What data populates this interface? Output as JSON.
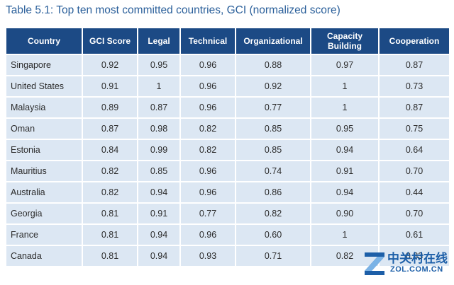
{
  "caption": "Table 5.1: Top ten most committed countries, GCI (normalized score)",
  "table": {
    "headers": [
      "Country",
      "GCI Score",
      "Legal",
      "Technical",
      "Organizational",
      "Capacity Building",
      "Cooperation"
    ],
    "rows": [
      [
        "Singapore",
        "0.92",
        "0.95",
        "0.96",
        "0.88",
        "0.97",
        "0.87"
      ],
      [
        "United States",
        "0.91",
        "1",
        "0.96",
        "0.92",
        "1",
        "0.73"
      ],
      [
        "Malaysia",
        "0.89",
        "0.87",
        "0.96",
        "0.77",
        "1",
        "0.87"
      ],
      [
        "Oman",
        "0.87",
        "0.98",
        "0.82",
        "0.85",
        "0.95",
        "0.75"
      ],
      [
        "Estonia",
        "0.84",
        "0.99",
        "0.82",
        "0.85",
        "0.94",
        "0.64"
      ],
      [
        "Mauritius",
        "0.82",
        "0.85",
        "0.96",
        "0.74",
        "0.91",
        "0.70"
      ],
      [
        "Australia",
        "0.82",
        "0.94",
        "0.96",
        "0.86",
        "0.94",
        "0.44"
      ],
      [
        "Georgia",
        "0.81",
        "0.91",
        "0.77",
        "0.82",
        "0.90",
        "0.70"
      ],
      [
        "France",
        "0.81",
        "0.94",
        "0.96",
        "0.60",
        "1",
        "0.61"
      ],
      [
        "Canada",
        "0.81",
        "0.94",
        "0.93",
        "0.71",
        "0.82",
        "0.83"
      ]
    ]
  },
  "watermark": {
    "cn": "中关村在线",
    "en": "ZOL.COM.CN"
  },
  "colors": {
    "header_bg": "#1c4a85",
    "cell_bg": "#dce7f3",
    "caption": "#2a5f9a"
  }
}
